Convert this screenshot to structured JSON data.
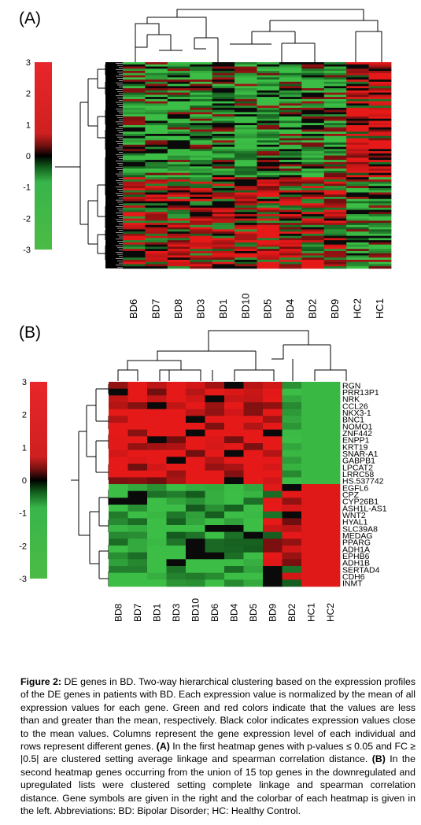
{
  "chart_data": [
    {
      "type": "heatmap",
      "panel_label": "(A)",
      "columns": [
        "BD6",
        "BD7",
        "BD8",
        "BD3",
        "BD1",
        "BD10",
        "BD5",
        "BD4",
        "BD2",
        "BD9",
        "HC2",
        "HC1"
      ],
      "row_count": 95,
      "colorbar": {
        "ticks": [
          "3",
          "2",
          "1",
          "0",
          "-1",
          "-2",
          "-3"
        ],
        "range": [
          -3,
          3
        ]
      },
      "colors": {
        "low": "#39b54a",
        "mid": "#000000",
        "high": "#e8262a"
      }
    },
    {
      "type": "heatmap",
      "panel_label": "(B)",
      "columns": [
        "BD8",
        "BD7",
        "BD1",
        "BD3",
        "BD10",
        "BD6",
        "BD4",
        "BD5",
        "BD9",
        "BD2",
        "HC1",
        "HC2"
      ],
      "rows": [
        "RGN",
        "PRR13P1",
        "NRK",
        "CCL26",
        "NKX3-1",
        "BNC1",
        "NOMO1",
        "ZNF442",
        "ENPP1",
        "KRT19",
        "SNAR-A1",
        "GABPB1",
        "LPCAT2",
        "LRRC58",
        "HS.537742",
        "EGFL6",
        "CPZ",
        "CYP26B1",
        "ASH1L-AS1",
        "WNT2",
        "HYAL1",
        "SLC39A8",
        "MEDAG",
        "PPARG",
        "ADH1A",
        "EPHB6",
        "ADH1B",
        "SERTAD4",
        "CDH6",
        "INMT"
      ],
      "colorbar": {
        "ticks": [
          "3",
          "2",
          "1",
          "0",
          "-1",
          "-2",
          "-3"
        ],
        "range": [
          -3,
          3
        ]
      },
      "colors": {
        "low": "#39b54a",
        "mid": "#000000",
        "high": "#e8262a"
      }
    }
  ],
  "caption": {
    "label": "Figure 2:",
    "text1": " DE genes in BD. Two-way hierarchical clustering based on the expression profiles of the DE genes in patients with BD. Each expression value is normalized by the mean of all expression values for each gene. Green and red colors indicate that the values are less than and greater than the mean, respectively.  Black color indicates expression values close to the mean values. Columns represent the gene expression level of each individual and rows represent different genes. ",
    "a_label": "(A)",
    "text2": " In the first heatmap genes with p-values ≤ 0.05 and FC ≥ |0.5| are clustered setting average linkage and spearman correlation distance. ",
    "b_label": "(B)",
    "text3": " In the second heatmap genes occurring from the union of 15 top genes in the downregulated and upregulated lists were clustered setting complete linkage and spearman correlation distance. Gene symbols are given in the right and  the colorbar of each heatmap is given in the left. Abbreviations: BD: Bipolar Disorder; HC: Healthy Control."
  }
}
